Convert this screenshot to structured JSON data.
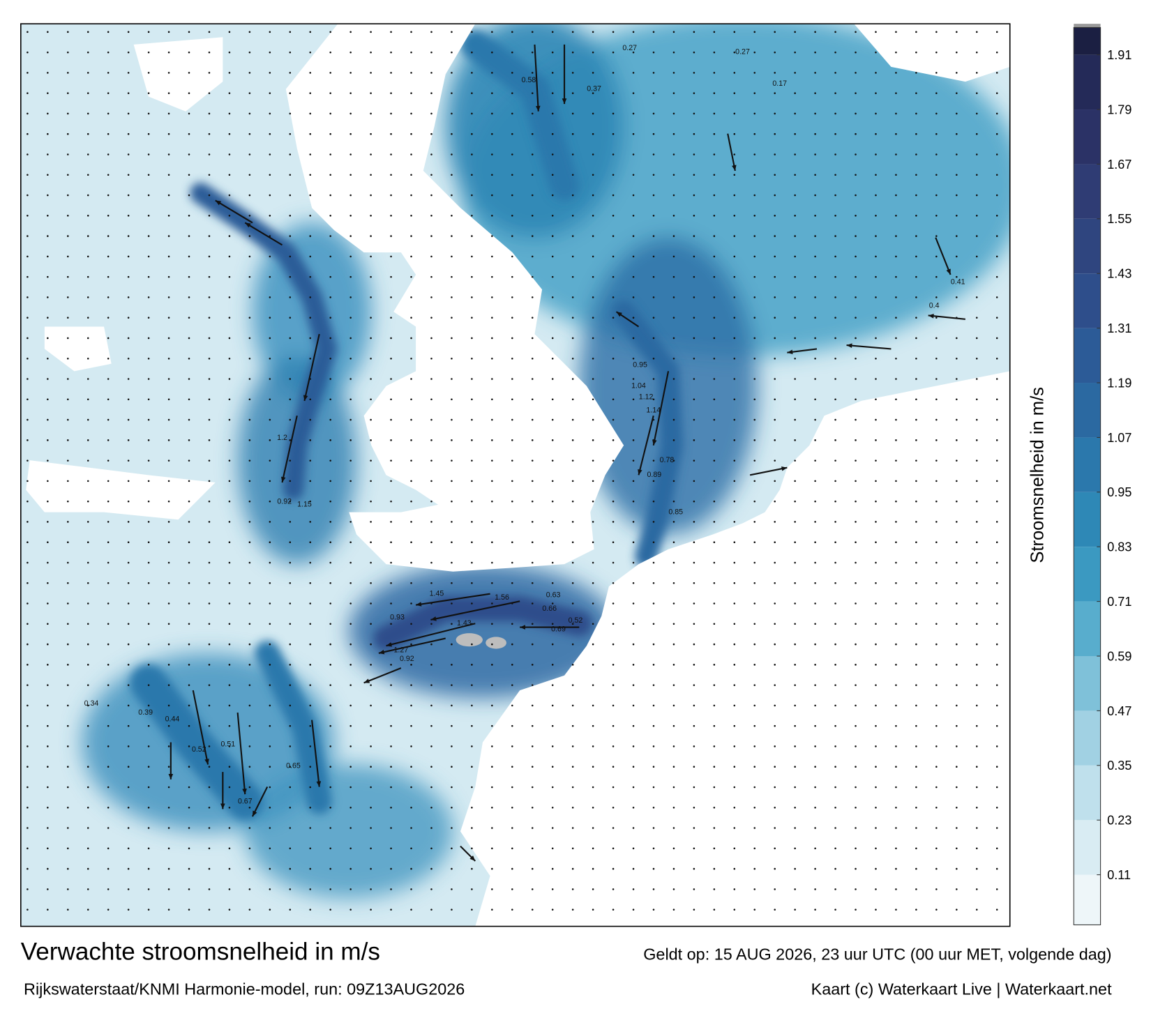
{
  "map": {
    "title": "Verwachte stroomsnelheid in m/s",
    "valid": "Geldt op: 15 AUG 2026, 23 uur UTC (00 uur MET, volgende dag)",
    "source": "Rijkswaterstaat/KNMI Harmonie-model, run: 09Z13AUG2026",
    "credit": "Kaart (c) Waterkaart Live | Waterkaart.net",
    "labels": [
      1.45,
      1.56,
      0.93,
      1.27,
      1.43,
      0.92,
      0.92,
      1.15,
      0.63,
      0.66,
      0.52,
      0.69,
      1.04,
      1.12,
      1.14,
      0.78,
      0.89,
      0.85,
      0.95,
      1.2,
      0.67,
      0.65,
      0.58,
      0.37,
      0.27,
      0.27,
      0.17,
      0.4,
      0.41,
      0.52,
      0.51,
      0.44,
      0.39,
      0.34
    ]
  },
  "colorbar": {
    "label": "Stroomsnelheid in m/s",
    "lim": [
      0,
      1.97
    ],
    "ticks": [
      0.11,
      0.23,
      0.35,
      0.47,
      0.59,
      0.71,
      0.83,
      0.95,
      1.07,
      1.19,
      1.31,
      1.43,
      1.55,
      1.67,
      1.79,
      1.91
    ],
    "colors": [
      "#eef6f9",
      "#d9ecf3",
      "#bfe0ec",
      "#a1d1e3",
      "#7fc1d9",
      "#58adcd",
      "#3b99c1",
      "#2e88b6",
      "#2b78ac",
      "#2b69a1",
      "#2c5b97",
      "#2e4e8b",
      "#2f457f",
      "#2f3c74",
      "#2b3266",
      "#242a58",
      "#1b1f42"
    ]
  }
}
